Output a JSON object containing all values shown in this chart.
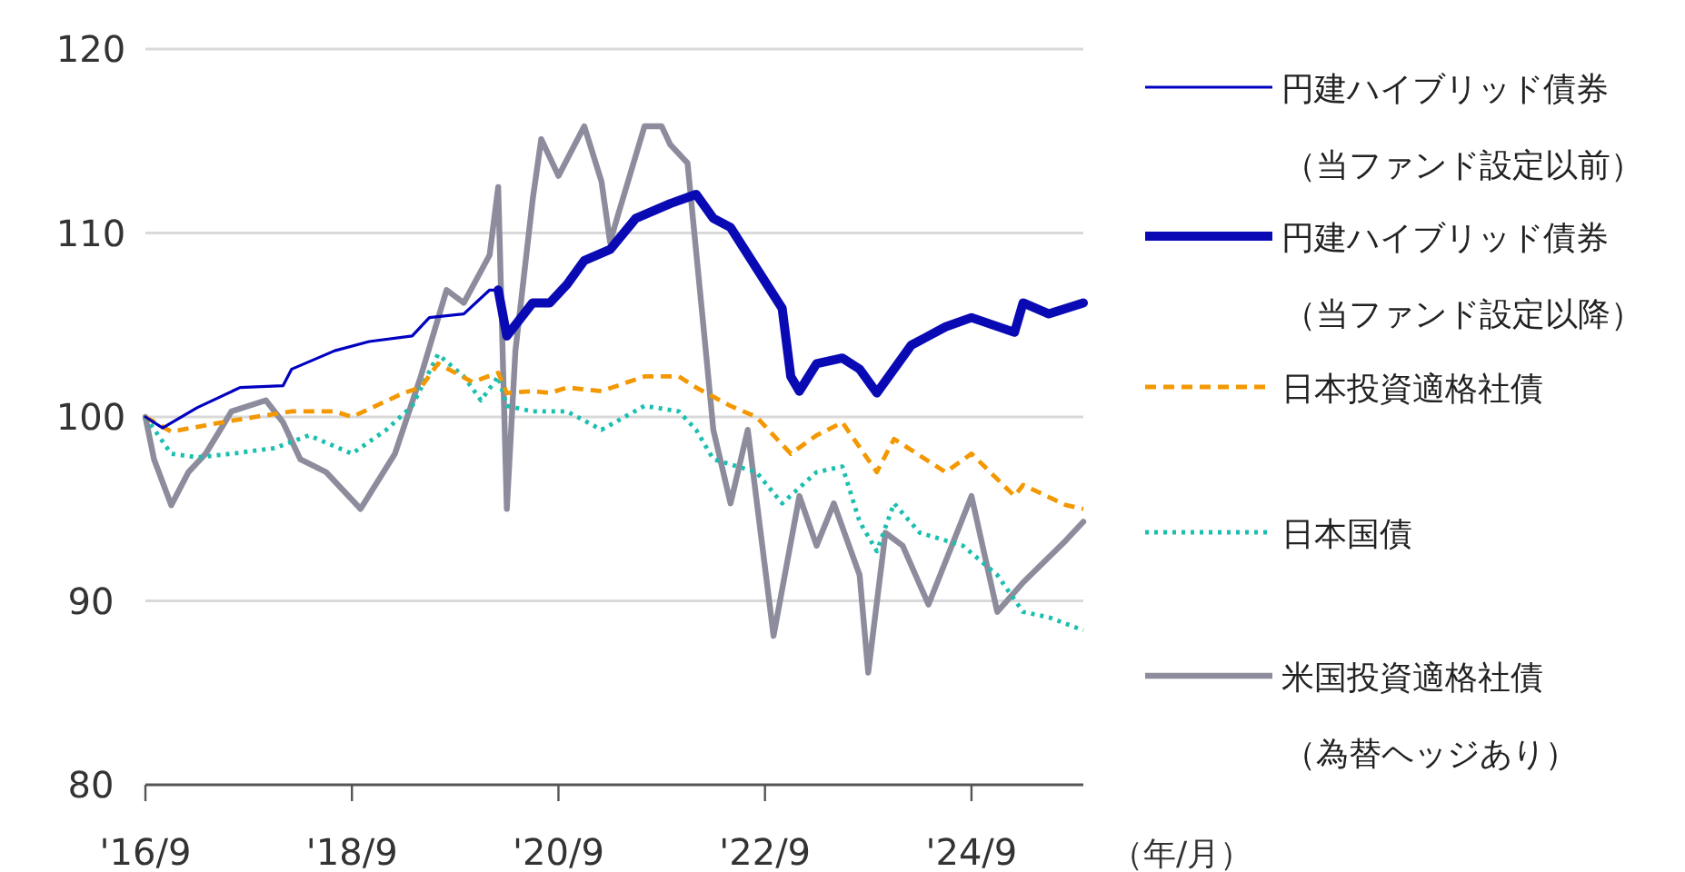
{
  "chart_data": {
    "type": "line",
    "xlabel": "（年/月）",
    "xlim": [
      "2016-09",
      "2025-10"
    ],
    "xticks": [
      {
        "value": "2016-09",
        "label": "'16/9"
      },
      {
        "value": "2018-09",
        "label": "'18/9"
      },
      {
        "value": "2020-09",
        "label": "'20/9"
      },
      {
        "value": "2022-09",
        "label": "'22/9"
      },
      {
        "value": "2024-09",
        "label": "'24/9"
      }
    ],
    "ylim": [
      80,
      120
    ],
    "yticks": [
      80,
      90,
      100,
      110,
      120
    ],
    "grid": "y",
    "legend": "right",
    "series": [
      {
        "name": "円建ハイブリッド債券（当ファンド設定以前）",
        "color": "#0000c0",
        "line_style": "solid",
        "x": [
          "2016-09",
          "2016-11",
          "2017-03",
          "2017-08",
          "2018-01",
          "2018-02",
          "2018-07",
          "2018-11",
          "2019-04",
          "2019-06",
          "2019-10",
          "2020-01",
          "2020-02"
        ],
        "values": [
          100,
          99.4,
          100.5,
          101.6,
          101.7,
          102.6,
          103.6,
          104.1,
          104.4,
          105.4,
          105.6,
          106.9,
          106.9
        ]
      },
      {
        "name": "円建ハイブリッド債券（当ファンド設定以降）",
        "color": "#0a0ab4",
        "line_style": "solid",
        "x": [
          "2020-02",
          "2020-03",
          "2020-06",
          "2020-08",
          "2020-10",
          "2020-12",
          "2021-03",
          "2021-06",
          "2021-10",
          "2022-01",
          "2022-03",
          "2022-05",
          "2022-08",
          "2022-11",
          "2022-12",
          "2023-01",
          "2023-03",
          "2023-06",
          "2023-08",
          "2023-10",
          "2024-02",
          "2024-06",
          "2024-09",
          "2025-02",
          "2025-03",
          "2025-06",
          "2025-10"
        ],
        "values": [
          106.9,
          104.4,
          106.2,
          106.2,
          107.2,
          108.5,
          109.1,
          110.8,
          111.6,
          112.1,
          110.8,
          110.3,
          108.1,
          105.9,
          102.2,
          101.4,
          102.9,
          103.2,
          102.6,
          101.3,
          103.9,
          104.9,
          105.4,
          104.6,
          106.2,
          105.6,
          106.2
        ]
      },
      {
        "name": "日本投資適格社債",
        "color": "#f39800",
        "line_style": "dashed",
        "x": [
          "2016-09",
          "2016-12",
          "2017-07",
          "2018-02",
          "2018-07",
          "2018-09",
          "2019-03",
          "2019-05",
          "2019-07",
          "2019-11",
          "2020-02",
          "2020-03",
          "2020-06",
          "2020-08",
          "2020-10",
          "2021-02",
          "2021-07",
          "2021-11",
          "2022-01",
          "2022-05",
          "2022-08",
          "2022-12",
          "2023-03",
          "2023-06",
          "2023-10",
          "2023-12",
          "2024-06",
          "2024-09",
          "2025-02",
          "2025-03",
          "2025-08",
          "2025-10"
        ],
        "values": [
          100,
          99.2,
          99.8,
          100.3,
          100.3,
          100,
          101.3,
          101.6,
          102.9,
          101.9,
          102.4,
          101.3,
          101.4,
          101.3,
          101.6,
          101.4,
          102.2,
          102.2,
          101.6,
          100.6,
          100,
          98,
          99,
          99.7,
          97,
          98.8,
          97,
          98,
          95.7,
          96.3,
          95.2,
          95
        ]
      },
      {
        "name": "日本国債",
        "color": "#1abfb0",
        "line_style": "dotted",
        "x": [
          "2016-09",
          "2016-12",
          "2017-03",
          "2017-07",
          "2017-12",
          "2018-04",
          "2018-09",
          "2019-01",
          "2019-04",
          "2019-07",
          "2019-10",
          "2019-12",
          "2020-02",
          "2020-03",
          "2020-06",
          "2020-10",
          "2021-02",
          "2021-07",
          "2021-11",
          "2022-01",
          "2022-03",
          "2022-08",
          "2022-11",
          "2023-03",
          "2023-06",
          "2023-08",
          "2023-10",
          "2023-12",
          "2024-03",
          "2024-08",
          "2024-12",
          "2025-03",
          "2025-06",
          "2025-10"
        ],
        "values": [
          100,
          98,
          97.8,
          98,
          98.3,
          99,
          98,
          99.3,
          100.6,
          103.4,
          102.2,
          100.9,
          102.2,
          100.6,
          100.3,
          100.3,
          99.3,
          100.6,
          100.3,
          99.3,
          97.7,
          97,
          95.3,
          97,
          97.3,
          94.3,
          92.7,
          95.3,
          93.7,
          93,
          91.4,
          89.4,
          89.1,
          88.4
        ]
      },
      {
        "name": "米国投資適格社債（為替ヘッジあり）",
        "color": "#8c8c9c",
        "line_style": "solid",
        "x": [
          "2016-09",
          "2016-10",
          "2016-12",
          "2017-02",
          "2017-04",
          "2017-07",
          "2017-11",
          "2018-01",
          "2018-03",
          "2018-06",
          "2018-10",
          "2019-02",
          "2019-05",
          "2019-08",
          "2019-10",
          "2020-01",
          "2020-02",
          "2020-03",
          "2020-04",
          "2020-06",
          "2020-07",
          "2020-08",
          "2020-09",
          "2020-12",
          "2021-02",
          "2021-03",
          "2021-04",
          "2021-07",
          "2021-09",
          "2021-10",
          "2021-12",
          "2022-02",
          "2022-03",
          "2022-05",
          "2022-07",
          "2022-10",
          "2023-01",
          "2023-03",
          "2023-05",
          "2023-08",
          "2023-09",
          "2023-11",
          "2024-01",
          "2024-04",
          "2024-09",
          "2024-12",
          "2025-03",
          "2025-08",
          "2025-10"
        ],
        "values": [
          100,
          97.7,
          95.2,
          97,
          98,
          100.3,
          100.9,
          99.7,
          97.7,
          97,
          95,
          98,
          102.2,
          106.9,
          106.2,
          108.8,
          112.5,
          95,
          103.6,
          111.8,
          115.1,
          114.1,
          113.1,
          115.8,
          112.8,
          109.5,
          111.1,
          115.8,
          115.8,
          114.8,
          113.8,
          104.2,
          99.3,
          95.3,
          99.3,
          88.1,
          95.7,
          93,
          95.3,
          91.4,
          86.1,
          93.7,
          93,
          89.8,
          95.7,
          89.4,
          91,
          93.3,
          94.3
        ]
      }
    ]
  }
}
